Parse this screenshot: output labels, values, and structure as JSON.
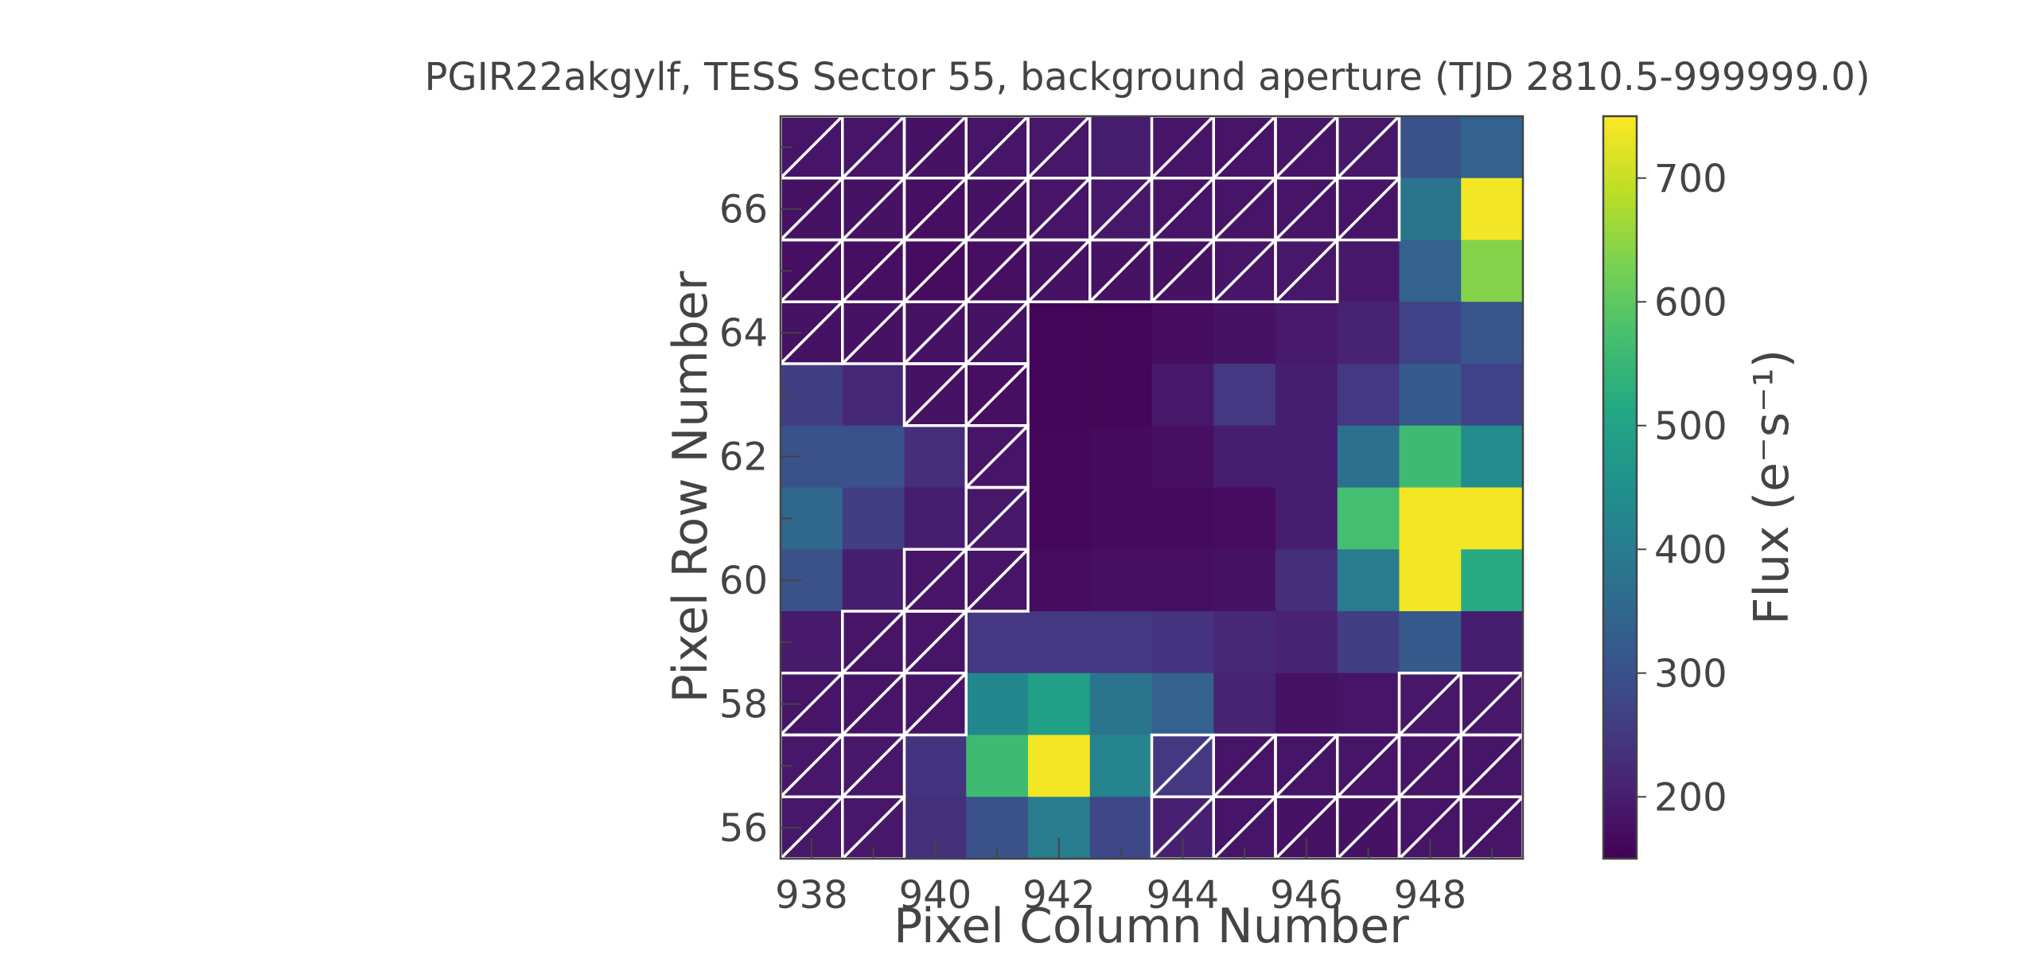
{
  "chart_data": {
    "type": "heatmap",
    "title": "PGIR22akgylf, TESS Sector 55, background aperture (TJD 2810.5-999999.0)",
    "xlabel": "Pixel Column Number",
    "ylabel": "Pixel Row Number",
    "colorbar_label": "Flux (e⁻s⁻¹)",
    "colormap": "viridis",
    "color_range": [
      150,
      750
    ],
    "xlim": [
      937.5,
      949.5
    ],
    "ylim": [
      55.5,
      67.5
    ],
    "x_ticks": [
      938,
      940,
      942,
      944,
      946,
      948
    ],
    "x_tick_labels": [
      "938",
      "940",
      "942",
      "944",
      "946",
      "948"
    ],
    "y_ticks": [
      56,
      58,
      60,
      62,
      64,
      66
    ],
    "y_tick_labels": [
      "56",
      "58",
      "60",
      "62",
      "64",
      "66"
    ],
    "colorbar_ticks": [
      200,
      300,
      400,
      500,
      600,
      700
    ],
    "colorbar_tick_labels": [
      "200",
      "300",
      "400",
      "500",
      "600",
      "700"
    ],
    "columns": [
      938,
      939,
      940,
      941,
      942,
      943,
      944,
      945,
      946,
      947,
      948,
      949
    ],
    "rows": [
      67,
      66,
      65,
      64,
      63,
      62,
      61,
      60,
      59,
      58,
      57,
      56
    ],
    "flux": [
      [
        185,
        185,
        180,
        185,
        190,
        200,
        185,
        185,
        185,
        190,
        300,
        340
      ],
      [
        180,
        180,
        175,
        180,
        185,
        190,
        185,
        185,
        185,
        185,
        380,
        740
      ],
      [
        175,
        175,
        170,
        175,
        180,
        180,
        180,
        185,
        190,
        190,
        340,
        640
      ],
      [
        180,
        180,
        180,
        180,
        155,
        155,
        170,
        180,
        195,
        210,
        270,
        310
      ],
      [
        260,
        220,
        180,
        175,
        155,
        155,
        190,
        250,
        200,
        250,
        320,
        270
      ],
      [
        300,
        300,
        230,
        185,
        160,
        165,
        175,
        200,
        200,
        370,
        560,
        440
      ],
      [
        350,
        260,
        200,
        190,
        160,
        165,
        165,
        170,
        200,
        570,
        740,
        740
      ],
      [
        300,
        200,
        185,
        185,
        170,
        175,
        175,
        180,
        230,
        400,
        740,
        520
      ],
      [
        195,
        185,
        185,
        250,
        250,
        250,
        240,
        220,
        210,
        260,
        320,
        200
      ],
      [
        185,
        185,
        185,
        430,
        490,
        380,
        340,
        210,
        180,
        185,
        190,
        190
      ],
      [
        190,
        190,
        240,
        560,
        740,
        420,
        250,
        185,
        185,
        185,
        185,
        185
      ],
      [
        190,
        190,
        235,
        300,
        400,
        280,
        205,
        185,
        180,
        180,
        185,
        185
      ]
    ],
    "aperture_mask": [
      [
        1,
        1,
        1,
        1,
        1,
        0,
        1,
        1,
        1,
        1,
        0,
        0
      ],
      [
        1,
        1,
        1,
        1,
        1,
        1,
        1,
        1,
        1,
        1,
        0,
        0
      ],
      [
        1,
        1,
        1,
        1,
        1,
        1,
        1,
        1,
        1,
        0,
        0,
        0
      ],
      [
        1,
        1,
        1,
        1,
        0,
        0,
        0,
        0,
        0,
        0,
        0,
        0
      ],
      [
        0,
        0,
        1,
        1,
        0,
        0,
        0,
        0,
        0,
        0,
        0,
        0
      ],
      [
        0,
        0,
        0,
        1,
        0,
        0,
        0,
        0,
        0,
        0,
        0,
        0
      ],
      [
        0,
        0,
        0,
        1,
        0,
        0,
        0,
        0,
        0,
        0,
        0,
        0
      ],
      [
        0,
        0,
        1,
        1,
        0,
        0,
        0,
        0,
        0,
        0,
        0,
        0
      ],
      [
        0,
        1,
        1,
        0,
        0,
        0,
        0,
        0,
        0,
        0,
        0,
        0
      ],
      [
        1,
        1,
        1,
        0,
        0,
        0,
        0,
        0,
        0,
        0,
        1,
        1
      ],
      [
        1,
        1,
        0,
        0,
        0,
        0,
        1,
        1,
        1,
        1,
        1,
        1
      ],
      [
        1,
        1,
        0,
        0,
        0,
        0,
        1,
        1,
        1,
        1,
        1,
        1
      ]
    ],
    "grid": false
  }
}
